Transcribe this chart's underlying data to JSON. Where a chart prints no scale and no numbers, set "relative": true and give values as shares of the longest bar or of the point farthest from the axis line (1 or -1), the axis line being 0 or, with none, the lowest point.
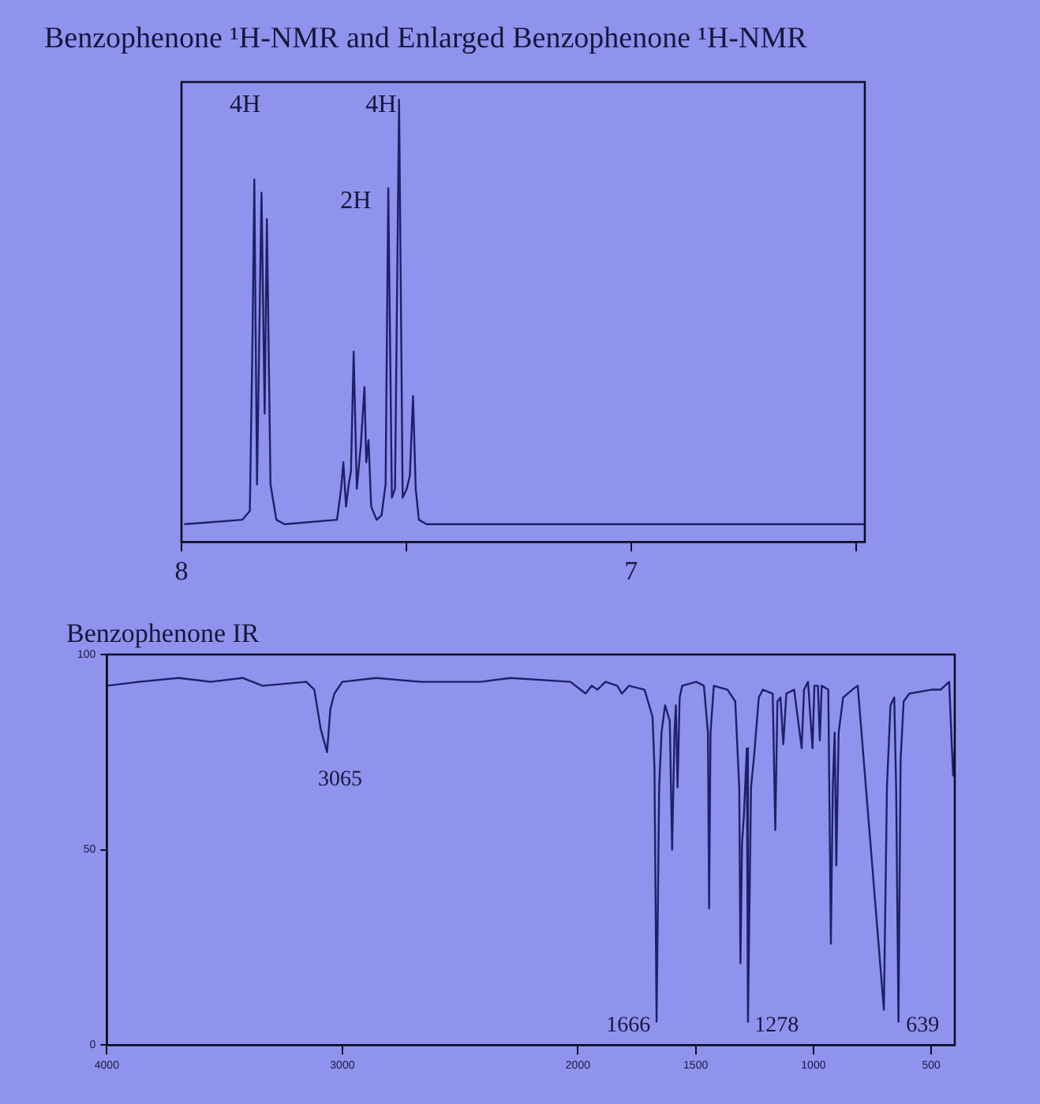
{
  "chart_data": [
    {
      "type": "line",
      "title": "Benzophenone ¹H-NMR and Enlarged Benzophenone ¹H-NMR",
      "relative": true,
      "x": [
        7.994,
        7.865,
        7.848,
        7.842,
        7.838,
        7.832,
        7.822,
        7.815,
        7.81,
        7.802,
        7.789,
        7.771,
        7.654,
        7.645,
        7.64,
        7.634,
        7.628,
        7.623,
        7.617,
        7.61,
        7.601,
        7.593,
        7.589,
        7.584,
        7.578,
        7.566,
        7.555,
        7.546,
        7.54,
        7.532,
        7.525,
        7.516,
        7.508,
        7.499,
        7.492,
        7.485,
        7.479,
        7.472,
        7.455,
        6.482
      ],
      "series": [
        {
          "color": "#1d2166",
          "values": [
            0.04,
            0.05,
            0.07,
            0.46,
            0.82,
            0.13,
            0.79,
            0.29,
            0.73,
            0.13,
            0.05,
            0.04,
            0.05,
            0.12,
            0.18,
            0.08,
            0.13,
            0.16,
            0.43,
            0.12,
            0.22,
            0.35,
            0.18,
            0.23,
            0.08,
            0.05,
            0.06,
            0.13,
            0.8,
            0.1,
            0.12,
            1,
            0.1,
            0.12,
            0.15,
            0.33,
            0.12,
            0.05,
            0.04,
            0.04
          ]
        }
      ],
      "xlim": [
        8,
        6.48
      ],
      "xticks": [
        8,
        {
          "value": 7.5,
          "label": null
        },
        7,
        {
          "value": 6.5,
          "label": null
        }
      ],
      "annotations": [
        "4H",
        "2H",
        "4H"
      ]
    },
    {
      "type": "line",
      "title": "Benzophenone IR",
      "x": [
        4000,
        3864,
        3695,
        3559,
        3424,
        3339,
        3153,
        3119,
        3092,
        3065,
        3051,
        3034,
        3000,
        2857,
        2667,
        2540,
        2413,
        2286,
        2032,
        1967,
        1942,
        1917,
        1883,
        1833,
        1813,
        1783,
        1717,
        1683,
        1675,
        1666,
        1655,
        1645,
        1630,
        1610,
        1600,
        1590,
        1584,
        1577,
        1568,
        1557,
        1498,
        1465,
        1448,
        1443,
        1437,
        1423,
        1365,
        1332,
        1315,
        1310,
        1303,
        1295,
        1283,
        1278,
        1265,
        1252,
        1232,
        1215,
        1173,
        1162,
        1153,
        1140,
        1128,
        1115,
        1082,
        1050,
        1040,
        1023,
        1004,
        996,
        981,
        973,
        965,
        937,
        926,
        918,
        910,
        903,
        893,
        874,
        835,
        812,
        701,
        688,
        673,
        657,
        649,
        639,
        630,
        617,
        593,
        499,
        460,
        424,
        415,
        407,
        400
      ],
      "series": [
        {
          "color": "#1d2166",
          "values": [
            92,
            93,
            94,
            93,
            94,
            92,
            93,
            91,
            81,
            75,
            86,
            90,
            93,
            94,
            93,
            93,
            93,
            94,
            93,
            90,
            92,
            91,
            93,
            92,
            90,
            92,
            91,
            84,
            71,
            6,
            66,
            80,
            87,
            83,
            50,
            80,
            87,
            66,
            89,
            92,
            93,
            92,
            80,
            35,
            80,
            92,
            91,
            88,
            66,
            21,
            52,
            59,
            76,
            6,
            66,
            74,
            89,
            91,
            90,
            55,
            88,
            89,
            77,
            90,
            91,
            76,
            91,
            93,
            76,
            92,
            92,
            78,
            92,
            91,
            26,
            66,
            80,
            46,
            80,
            89,
            91,
            92,
            9,
            66,
            87,
            89,
            66,
            6,
            73,
            88,
            90,
            91,
            91,
            93,
            80,
            69,
            76
          ]
        }
      ],
      "xlim": [
        4000,
        400
      ],
      "xticks": [
        4000,
        3000,
        2000,
        1500,
        1000,
        500
      ],
      "ylim": [
        0,
        100
      ],
      "yticks": [
        0,
        50,
        100
      ],
      "annotations": [
        "3065",
        "1666",
        "1278",
        "639"
      ]
    }
  ]
}
